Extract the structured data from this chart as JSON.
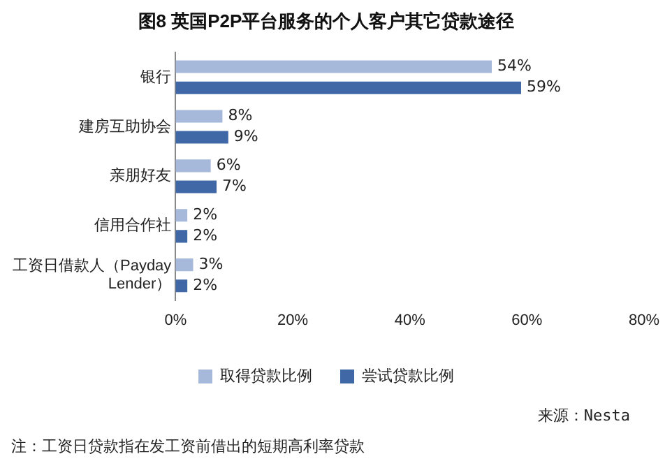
{
  "chart_data": {
    "type": "bar",
    "orientation": "horizontal",
    "title": "图8 英国P2P平台服务的个人客户其它贷款途径",
    "categories": [
      "银行",
      "建房互助协会",
      "亲朋好友",
      "信用合作社",
      "工资日借款人（Payday Lender）"
    ],
    "series": [
      {
        "name": "取得贷款比例",
        "color": "#a7b9da",
        "values": [
          54,
          8,
          6,
          2,
          3
        ],
        "value_labels": [
          "54%",
          "8%",
          "6%",
          "2%",
          "3%"
        ]
      },
      {
        "name": "尝试贷款比例",
        "color": "#4068a6",
        "values": [
          59,
          9,
          7,
          2,
          2
        ],
        "value_labels": [
          "59%",
          "9%",
          "7%",
          "2%",
          "2%"
        ]
      }
    ],
    "xlim": [
      0,
      80
    ],
    "xticks": [
      {
        "value": 0,
        "label": "0%"
      },
      {
        "value": 20,
        "label": "20%"
      },
      {
        "value": 40,
        "label": "40%"
      },
      {
        "value": 60,
        "label": "60%"
      },
      {
        "value": 80,
        "label": "80%"
      }
    ],
    "grid": false,
    "legend": "bottom",
    "annotations": [
      "来源：Nesta",
      "注：工资日贷款指在发工资前借出的短期高利率贷款"
    ]
  }
}
